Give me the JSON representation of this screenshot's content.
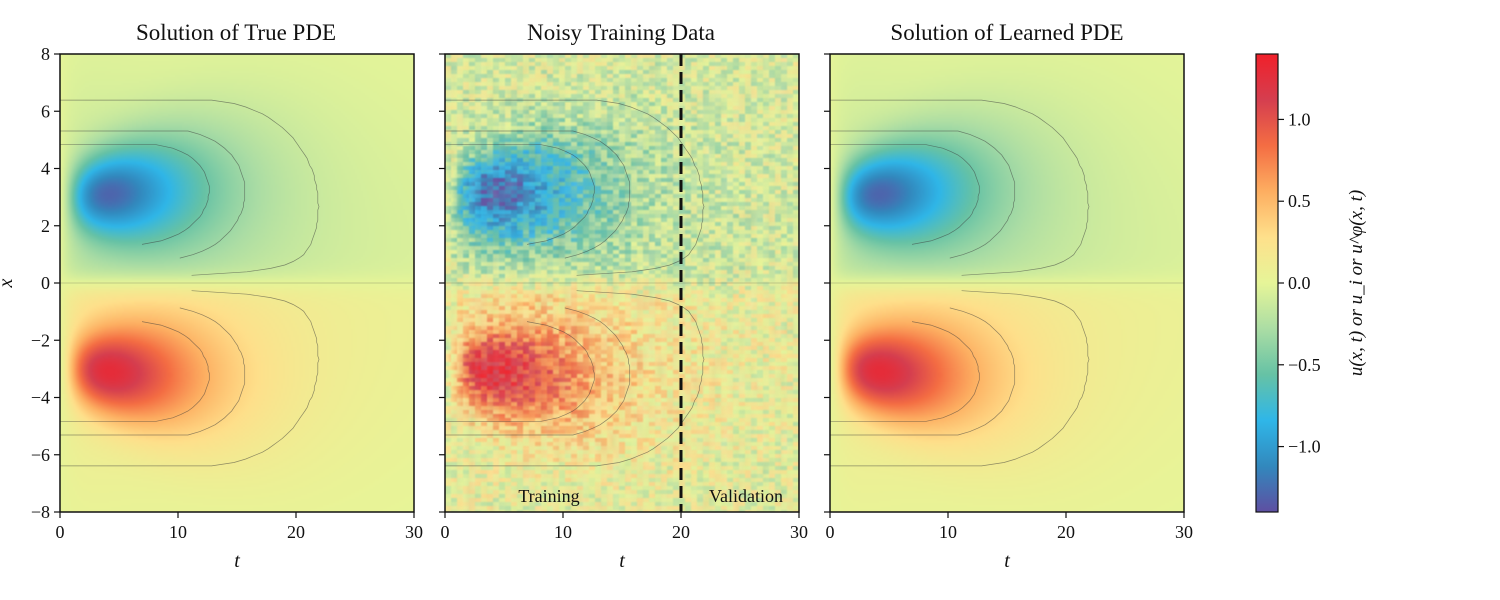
{
  "chart_data": [
    {
      "type": "heatmap",
      "title": "Solution of True PDE",
      "xlabel": "t",
      "ylabel": "x",
      "xlim": [
        0,
        30
      ],
      "ylim": [
        -8,
        8
      ],
      "xticks": [
        "0",
        "10",
        "20",
        "30"
      ],
      "yticks": [
        "8",
        "6",
        "4",
        "2",
        "0",
        "−2",
        "−4",
        "−6",
        "−8"
      ],
      "field": {
        "peak_t": 4,
        "peak_x": 3,
        "amplitude": 1.2
      },
      "contours": true
    },
    {
      "type": "heatmap",
      "title": "Noisy Training Data",
      "xlabel": "t",
      "ylabel": "",
      "xlim": [
        0,
        30
      ],
      "ylim": [
        -8,
        8
      ],
      "xticks": [
        "0",
        "10",
        "20",
        "30"
      ],
      "field": {
        "peak_t": 4,
        "peak_x": 3,
        "amplitude": 1.2,
        "noise": 0.25
      },
      "split_t": 20,
      "annotations": [
        "Training",
        "Validation"
      ],
      "contours": true
    },
    {
      "type": "heatmap",
      "title": "Solution of Learned PDE",
      "xlabel": "t",
      "ylabel": "",
      "xlim": [
        0,
        30
      ],
      "ylim": [
        -8,
        8
      ],
      "xticks": [
        "0",
        "10",
        "20",
        "30"
      ],
      "field": {
        "peak_t": 4,
        "peak_x": 3,
        "amplitude": 1.2
      },
      "contours": true
    }
  ],
  "colorbar": {
    "label": "u(x, t) or u_i or u^φ(x, t)",
    "range": [
      -1.4,
      1.4
    ],
    "ticks": [
      {
        "value": 1.0,
        "label": "1.0"
      },
      {
        "value": 0.5,
        "label": "0.5"
      },
      {
        "value": 0.0,
        "label": "0.0"
      },
      {
        "value": -0.5,
        "label": "−0.5"
      },
      {
        "value": -1.0,
        "label": "−1.0"
      }
    ],
    "colormap": [
      "#5e4fa2",
      "#3288bd",
      "#2fb6e8",
      "#66c2a5",
      "#abdda4",
      "#e6f598",
      "#fee08b",
      "#fdae61",
      "#f46d43",
      "#d53e4f",
      "#f0202a"
    ]
  }
}
